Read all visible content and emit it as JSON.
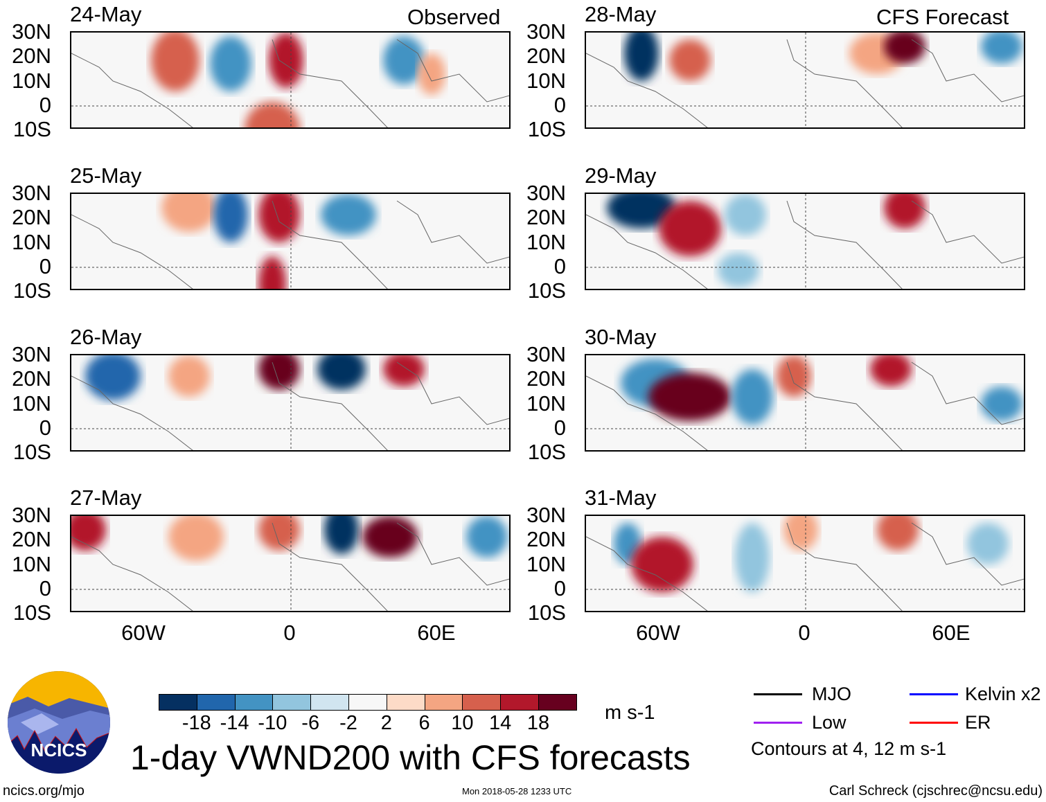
{
  "title": "1-day VWND200 with CFS forecasts",
  "observed_label": "Observed",
  "forecast_label": "CFS Forecast",
  "observed_dates": [
    "24-May",
    "25-May",
    "26-May",
    "27-May"
  ],
  "forecast_dates": [
    "28-May",
    "29-May",
    "30-May",
    "31-May"
  ],
  "lat_ticks": [
    "30N",
    "20N",
    "10N",
    "0",
    "10S"
  ],
  "lon_ticks": [
    "60W",
    "0",
    "60E"
  ],
  "colorbar": {
    "labels": [
      "-18",
      "-14",
      "-10",
      "-6",
      "-2",
      "2",
      "6",
      "10",
      "14",
      "18"
    ],
    "colors": [
      "#053061",
      "#2166ac",
      "#4393c3",
      "#92c5de",
      "#d1e5f0",
      "#f7f7f7",
      "#fddbc7",
      "#f4a582",
      "#d6604d",
      "#b2182b",
      "#67001f"
    ],
    "units": "m s-1"
  },
  "legend": {
    "items": [
      {
        "label": "MJO",
        "color": "#000000"
      },
      {
        "label": "Kelvin x2",
        "color": "#0000ff"
      },
      {
        "label": "Low",
        "color": "#a020f0"
      },
      {
        "label": "ER",
        "color": "#ff0000"
      }
    ],
    "note": "Contours at 4, 12 m s-1"
  },
  "logo_text": "NCICS",
  "footer": {
    "url": "ncics.org/mjo",
    "timestamp": "Mon 2018-05-28 1233 UTC",
    "credit": "Carl Schreck (cjschrec@ncsu.edu)"
  }
}
